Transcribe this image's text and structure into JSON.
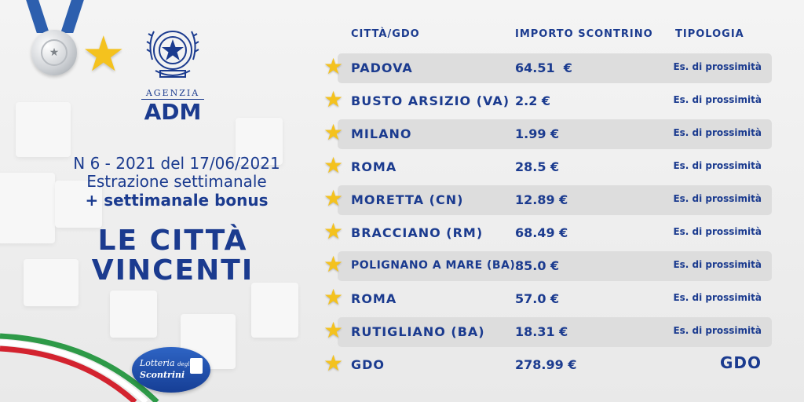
{
  "brand": {
    "agency_small": "AGENZIA",
    "agency_big": "ADM"
  },
  "issue": {
    "line1": "N 6 - 2021 del 17/06/2021",
    "line2": "Estrazione settimanale",
    "line3": "+ settimanale bonus"
  },
  "headline": [
    "LE CITTÀ",
    "VINCENTI"
  ],
  "logo": {
    "line1": "Lotteria",
    "line2": "degli",
    "line3": "Scontrini"
  },
  "table": {
    "headers": {
      "city": "CITTÀ/GDO",
      "amount": "IMPORTO SCONTRINO",
      "type": "TIPOLOGIA"
    },
    "rows": [
      {
        "city": "PADOVA",
        "amount": "64.51  €",
        "type": "Es. di prossimità"
      },
      {
        "city": "BUSTO ARSIZIO (VA)",
        "amount": "2.2 €",
        "type": "Es. di prossimità"
      },
      {
        "city": "MILANO",
        "amount": "1.99 €",
        "type": "Es. di prossimità"
      },
      {
        "city": "ROMA",
        "amount": "28.5 €",
        "type": "Es. di prossimità"
      },
      {
        "city": "MORETTA (CN)",
        "amount": "12.89 €",
        "type": "Es. di prossimità"
      },
      {
        "city": "BRACCIANO (RM)",
        "amount": "68.49 €",
        "type": "Es. di prossimità"
      },
      {
        "city": "POLIGNANO A MARE (BA)",
        "amount": "85.0 €",
        "type": "Es. di prossimità"
      },
      {
        "city": "ROMA",
        "amount": "57.0 €",
        "type": "Es. di prossimità"
      },
      {
        "city": "RUTIGLIANO (BA)",
        "amount": "18.31 €",
        "type": "Es. di prossimità"
      },
      {
        "city": "GDO",
        "amount": "278.99 €",
        "type": "GDO"
      }
    ]
  },
  "colors": {
    "brand_blue": "#1b3b8f",
    "star_gold": "#f4c21e",
    "row_band": "#dddddd",
    "flag_green": "#2e9a48",
    "flag_red": "#d3232f"
  },
  "icons": {
    "medal": "silver-medal-icon",
    "star": "gold-star-icon",
    "emblem": "italian-republic-emblem",
    "row_marker": "small-star-icon"
  }
}
